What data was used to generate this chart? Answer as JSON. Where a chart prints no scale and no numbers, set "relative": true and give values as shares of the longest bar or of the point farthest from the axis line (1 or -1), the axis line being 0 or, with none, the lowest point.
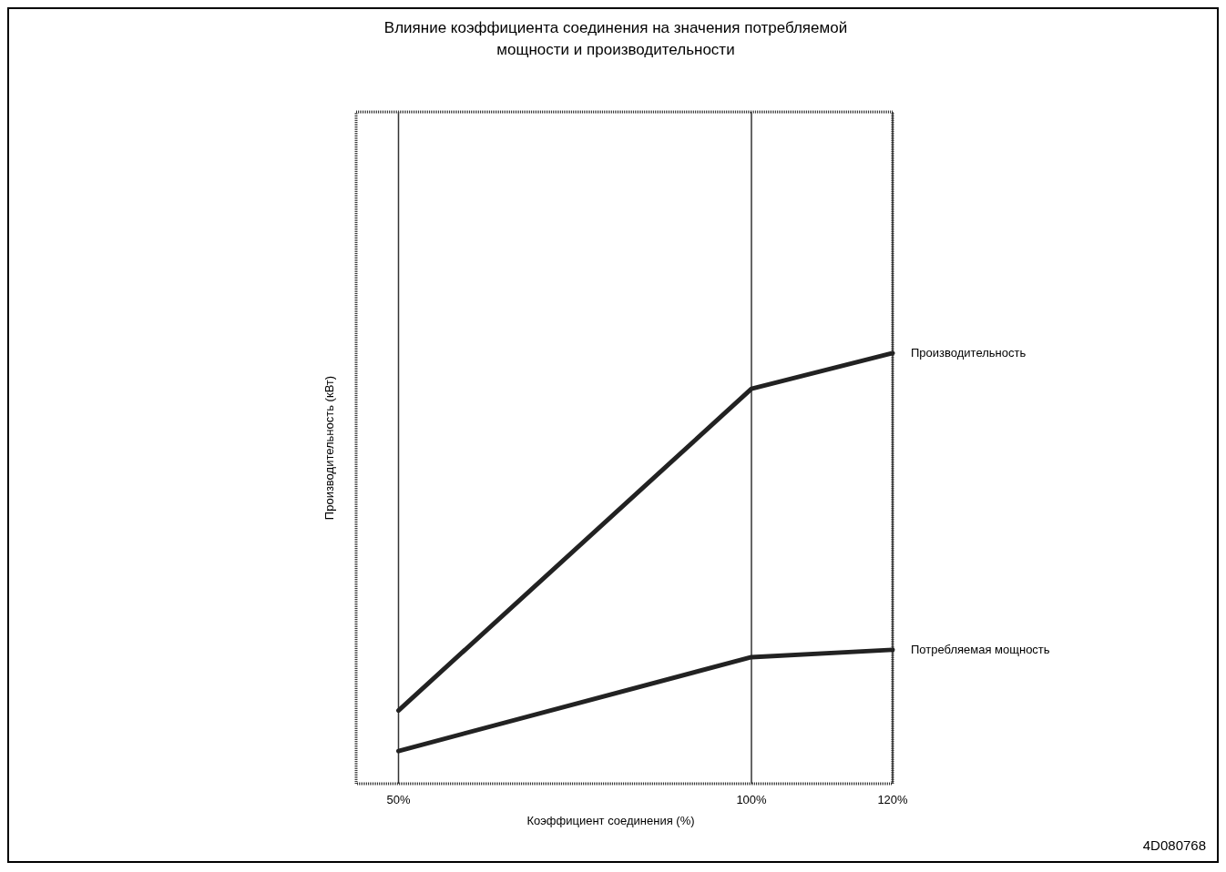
{
  "chart_data": {
    "type": "line",
    "title": "Влияние коэффициента соединения на значения потребляемой мощности и производительности",
    "xlabel": "Коэффициент соединения (%)",
    "ylabel": "Производительность (кВт)",
    "annotations": [
      "4D080768"
    ],
    "x": [
      50,
      100,
      120
    ],
    "xlim": [
      44,
      120
    ],
    "xticks": [
      {
        "value": 50,
        "label": "50%"
      },
      {
        "value": 100,
        "label": "100%"
      },
      {
        "value": 120,
        "label": "120%"
      }
    ],
    "relative": true,
    "grid": "x",
    "legend": false,
    "series": [
      {
        "name": "Производительность",
        "color": "#222222",
        "values": [
          0.17,
          0.917,
          1
        ]
      },
      {
        "name": "Потребляемая мощность",
        "color": "#222222",
        "values": [
          0.076,
          0.294,
          0.311
        ]
      }
    ]
  }
}
